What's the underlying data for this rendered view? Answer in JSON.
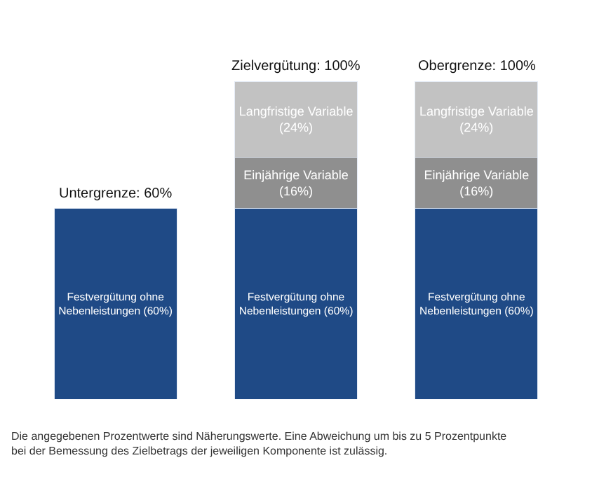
{
  "chart_data": {
    "type": "bar",
    "stacked": true,
    "categories": [
      null,
      null,
      null
    ],
    "series": [
      {
        "color": "#1f4a86",
        "values": [
          60,
          60,
          60
        ],
        "value_labels": [
          "Festvergütung ohne Nebenleistungen (60%)",
          "Festvergütung ohne Nebenleistungen (60%)",
          "Festvergütung ohne Nebenleistungen (60%)"
        ]
      },
      {
        "color": "#8f8f8f",
        "values": [
          null,
          16,
          16
        ],
        "value_labels": [
          null,
          "Einjährige Variable (16%)",
          "Einjährige Variable (16%)"
        ]
      },
      {
        "color": "#c2c2c2",
        "values": [
          null,
          24,
          24
        ],
        "value_labels": [
          null,
          "Langfristige Variable (24%)",
          "Langfristige Variable (24%)"
        ]
      }
    ],
    "totals": [
      "Untergrenze: 60%",
      "Zielvergütung: 100%",
      "Obergrenze: 100%"
    ],
    "annotations": [
      "Die angegebenen Prozentwerte sind Näherungswerte. Eine Abweichung um bis zu 5 Prozentpunkte bei der Bemessung des Zielbetrags der jeweiligen Komponente ist zulässig."
    ],
    "legend": false
  }
}
